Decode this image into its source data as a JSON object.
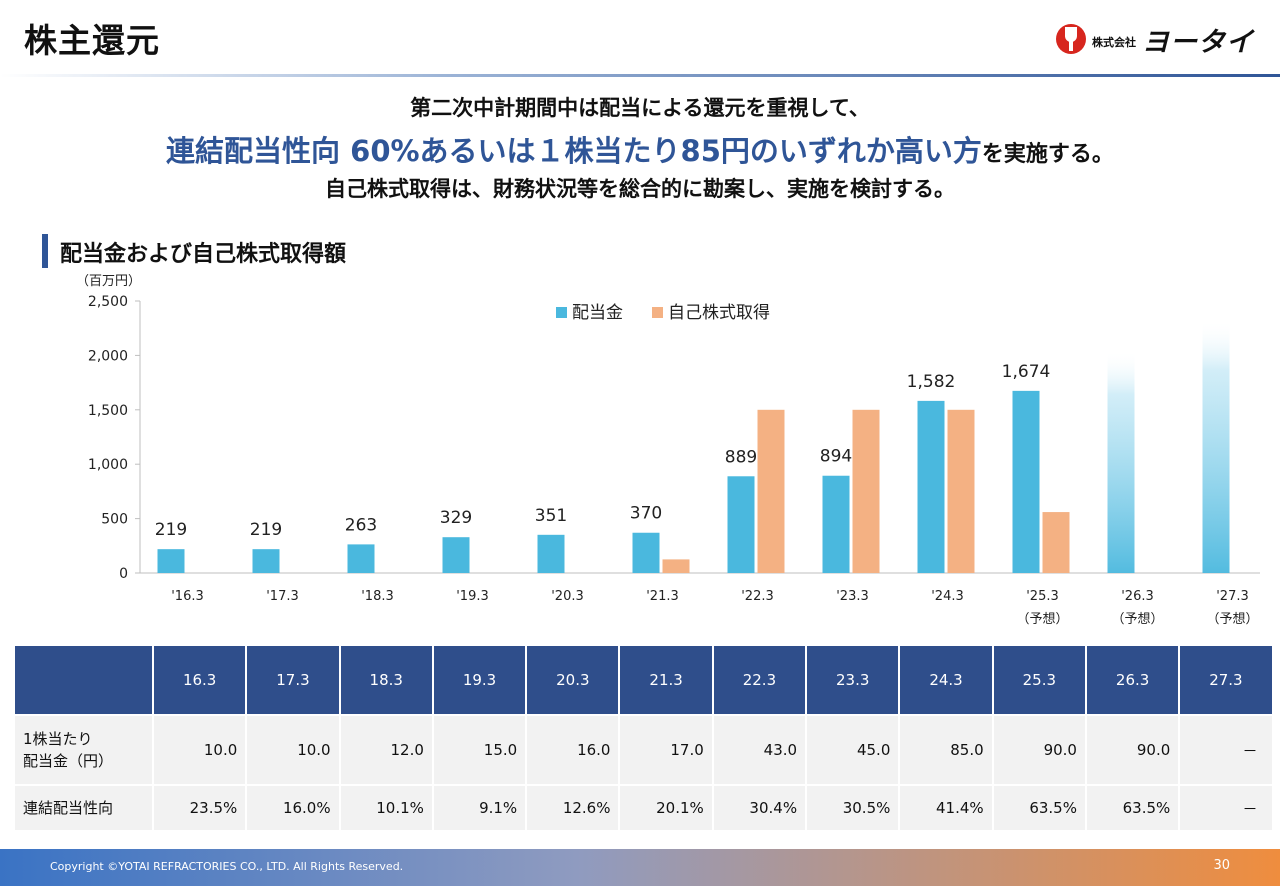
{
  "header": {
    "title": "株主還元",
    "logo_small": "株式会社",
    "logo_name": "ヨータイ"
  },
  "message": {
    "line1": "第二次中計期間中は配当による還元を重視して、",
    "line2_highlight": "連結配当性向 60%あるいは１株当たり85円のいずれか高い方",
    "line2_tail": "を実施する。",
    "line3": "自己株式取得は、財務状況等を総合的に勘案し、実施を検討する。"
  },
  "section": {
    "title": "配当金および自己株式取得額"
  },
  "chart_data": {
    "type": "bar",
    "unit_label": "（百万円）",
    "categories": [
      "'16.3",
      "'17.3",
      "'18.3",
      "'19.3",
      "'20.3",
      "'21.3",
      "'22.3",
      "'23.3",
      "'24.3",
      "'25.3",
      "'26.3",
      "'27.3"
    ],
    "category_sublabels": [
      "",
      "",
      "",
      "",
      "",
      "",
      "",
      "",
      "",
      "（予想）",
      "（予想）",
      "（予想）"
    ],
    "ylim": [
      0,
      2500
    ],
    "yticks": [
      0,
      500,
      1000,
      1500,
      2000,
      2500
    ],
    "ytick_labels": [
      "0",
      "500",
      "1,000",
      "1,500",
      "2,000",
      "2,500"
    ],
    "grid": false,
    "legend_position": "top-center",
    "series": [
      {
        "name": "配当金",
        "color": "#4ab8de",
        "values": [
          219,
          219,
          263,
          329,
          351,
          370,
          889,
          894,
          1582,
          1674,
          2050,
          2330
        ],
        "labels": [
          "219",
          "219",
          "263",
          "329",
          "351",
          "370",
          "889",
          "894",
          "1,582",
          "1,674",
          "",
          ""
        ],
        "faded": [
          false,
          false,
          false,
          false,
          false,
          false,
          false,
          false,
          false,
          false,
          true,
          true
        ]
      },
      {
        "name": "自己株式取得",
        "color": "#f4b183",
        "values": [
          0,
          0,
          0,
          0,
          0,
          125,
          1500,
          1500,
          1500,
          560,
          0,
          0
        ]
      }
    ]
  },
  "table": {
    "headers": [
      "",
      "16.3",
      "17.3",
      "18.3",
      "19.3",
      "20.3",
      "21.3",
      "22.3",
      "23.3",
      "24.3",
      "25.3",
      "26.3",
      "27.3"
    ],
    "rows": [
      {
        "label_line1": "1株当たり",
        "label_line2": "配当金（円）",
        "values": [
          "10.0",
          "10.0",
          "12.0",
          "15.0",
          "16.0",
          "17.0",
          "43.0",
          "45.0",
          "85.0",
          "90.0",
          "90.0",
          "－"
        ]
      },
      {
        "label_line1": "連結配当性向",
        "label_line2": "",
        "values": [
          "23.5%",
          "16.0%",
          "10.1%",
          "9.1%",
          "12.6%",
          "20.1%",
          "30.4%",
          "30.5%",
          "41.4%",
          "63.5%",
          "63.5%",
          "－"
        ]
      }
    ]
  },
  "footer": {
    "copyright": "Copyright ©YOTAI REFRACTORIES CO., LTD. All Rights Reserved.",
    "page_number": "30"
  }
}
